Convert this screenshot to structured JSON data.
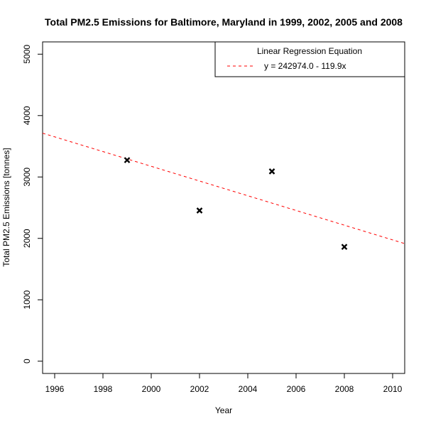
{
  "chart_data": {
    "type": "scatter",
    "title": "Total PM2.5 Emissions for Baltimore, Maryland in 1999, 2002, 2005 and 2008",
    "xlabel": "Year",
    "ylabel": "Total PM2.5 Emissions [tonnes]",
    "xlim": [
      1995.5,
      2010.5
    ],
    "ylim": [
      -200,
      5200
    ],
    "x_ticks": [
      1996,
      1998,
      2000,
      2002,
      2004,
      2006,
      2008,
      2010
    ],
    "y_ticks": [
      0,
      1000,
      2000,
      3000,
      4000,
      5000
    ],
    "points": [
      {
        "x": 1999,
        "y": 3274
      },
      {
        "x": 2002,
        "y": 2454
      },
      {
        "x": 2005,
        "y": 3091
      },
      {
        "x": 2008,
        "y": 1862
      }
    ],
    "regression": {
      "intercept": 242974.0,
      "slope": -119.9,
      "color": "#ff0000",
      "style": "dashed"
    },
    "legend": {
      "title": "Linear Regression Equation",
      "entry": "y = 242974.0 - 119.9x",
      "position": "top-right"
    },
    "grid": false
  }
}
